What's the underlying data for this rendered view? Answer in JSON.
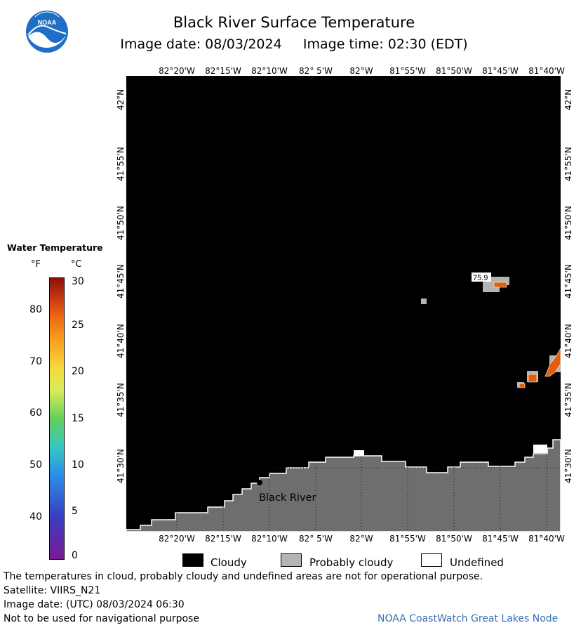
{
  "header": {
    "title": "Black River Surface Temperature",
    "subtitle": "Image date: 08/03/2024     Image time: 02:30 (EDT)",
    "logo_text": "NOAA"
  },
  "map": {
    "lon_labels": [
      "82°20'W",
      "82°15'W",
      "82°10'W",
      "82° 5'W",
      "82°W",
      "81°55'W",
      "81°50'W",
      "81°45'W",
      "81°40'W"
    ],
    "lat_labels": [
      "42°N",
      "41°55'N",
      "41°50'N",
      "41°45'N",
      "41°40'N",
      "41°35'N",
      "41°30'N"
    ],
    "place_label": "Black River",
    "temp_readout": "75.9",
    "colors": {
      "water_cloudy": "#000000",
      "land": "#6e6e6e",
      "probably_cloudy": "#b4b4b4",
      "warm_water": "#e0600e",
      "undefined": "#ffffff"
    }
  },
  "legend": {
    "title": "Water Temperature",
    "f_header": "°F",
    "c_header": "°C",
    "f_ticks": [
      "80",
      "70",
      "60",
      "50",
      "40"
    ],
    "c_ticks": [
      "30",
      "25",
      "20",
      "15",
      "10",
      "5",
      "0"
    ],
    "items": [
      {
        "label": "Cloudy",
        "color": "#000000"
      },
      {
        "label": "Probably cloudy",
        "color": "#b4b4b4"
      },
      {
        "label": "Undefined",
        "color": "#ffffff"
      }
    ]
  },
  "footer": {
    "disclaimer": "The temperatures in cloud, probably cloudy and undefined areas are not for operational purpose.",
    "satellite": "Satellite: VIIRS_N21",
    "utc_date": "Image date: (UTC) 08/03/2024  06:30",
    "nav_warning": "Not to be used for navigational purpose",
    "credit": "NOAA CoastWatch Great Lakes Node"
  }
}
